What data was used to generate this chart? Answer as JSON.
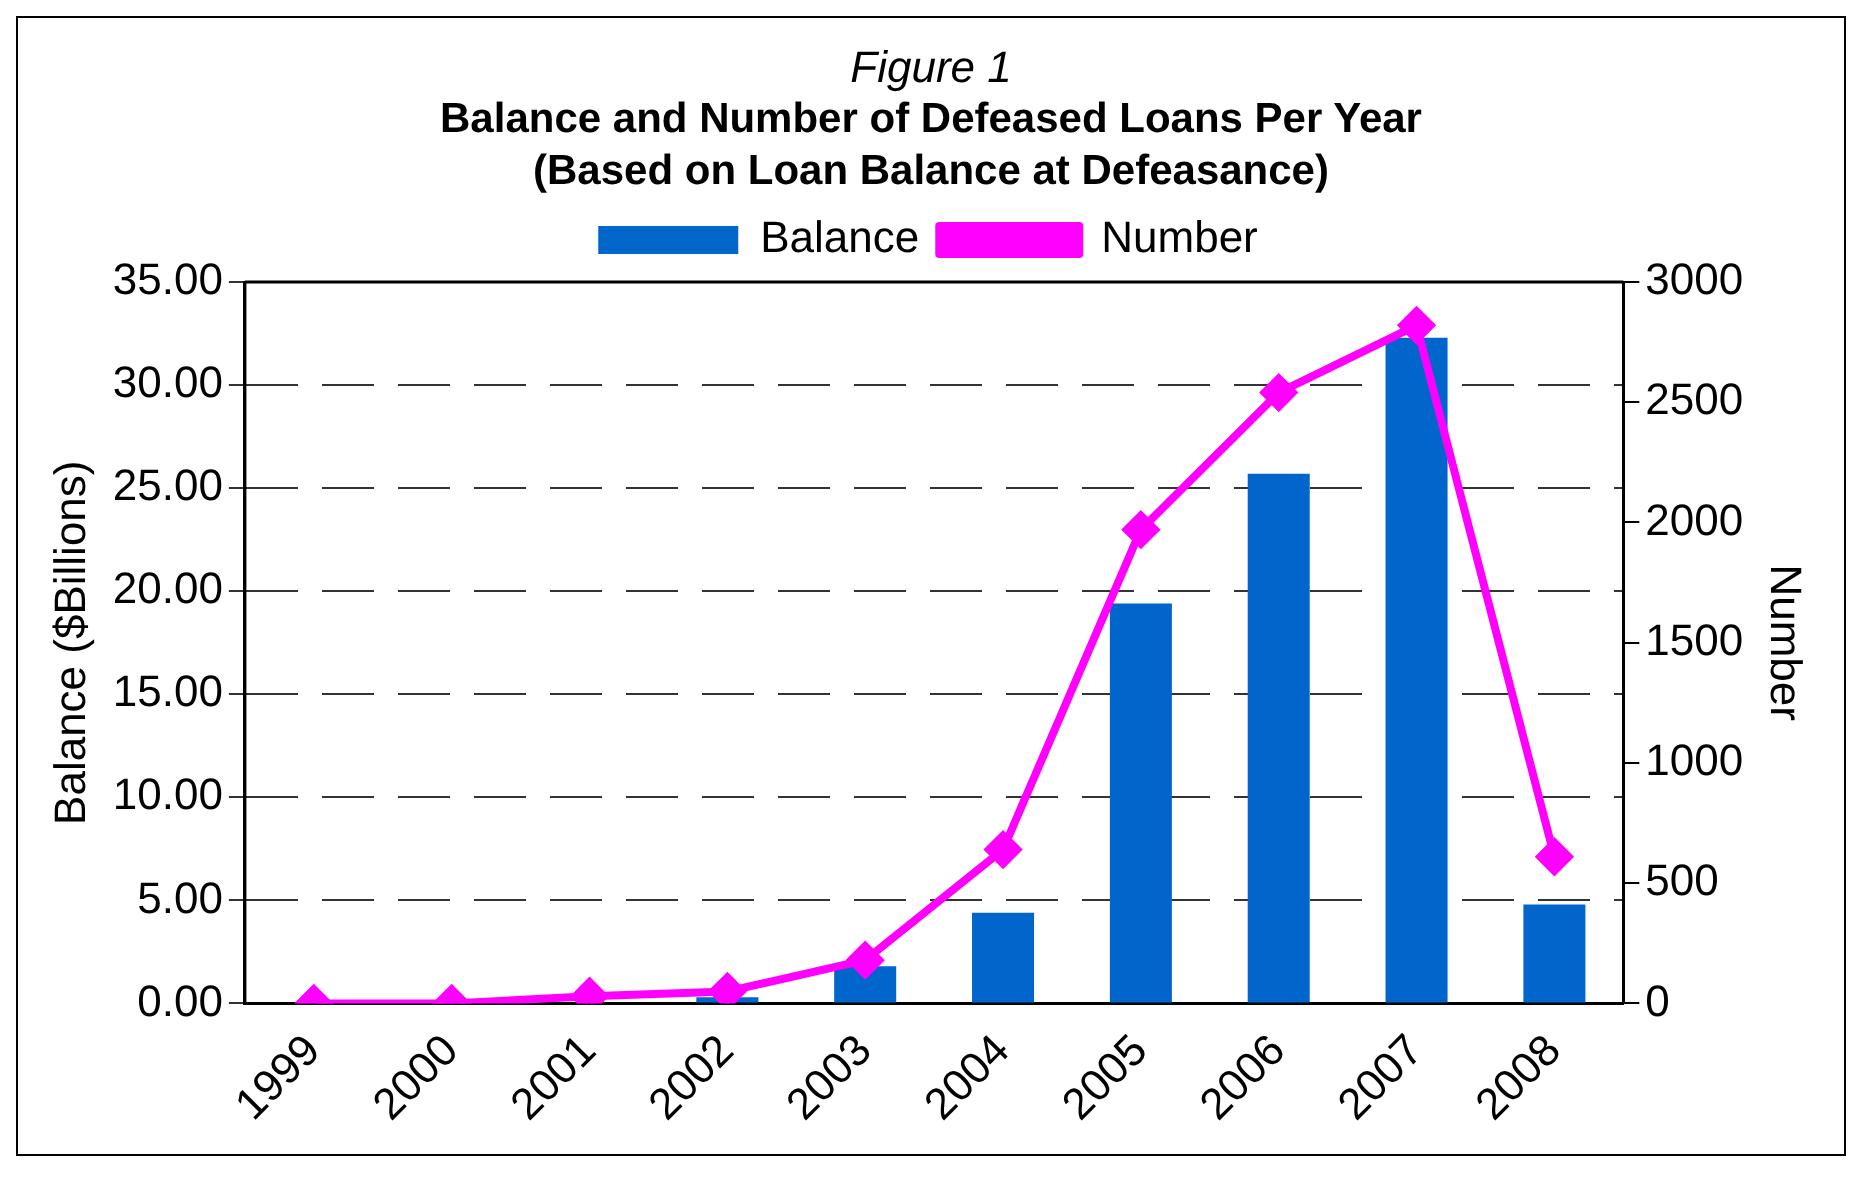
{
  "chart_data": {
    "type": "bar",
    "annotations": [
      "Figure 1"
    ],
    "title": "Balance and Number of Defeased Loans Per Year",
    "subtitle": "(Based on Loan Balance at Defeasance)",
    "categories": [
      "1999",
      "2000",
      "2001",
      "2002",
      "2003",
      "2004",
      "2005",
      "2006",
      "2007",
      "2008"
    ],
    "series": [
      {
        "name": "Balance",
        "color": "#0066cc",
        "values": [
          0,
          0,
          0,
          0.3,
          1.8,
          4.4,
          19.4,
          25.7,
          32.3,
          4.8
        ]
      },
      {
        "name": "Number",
        "type": "line",
        "axis": "y2",
        "color": "#ff00ff",
        "marker": "diamond",
        "values": [
          0,
          0,
          30,
          50,
          180,
          640,
          1970,
          2540,
          2820,
          610
        ]
      }
    ],
    "ylabel": "Balance ($Billions)",
    "y2label": "Number",
    "ylim": [
      0,
      35
    ],
    "yticks": [
      {
        "value": 0,
        "label": "0.00"
      },
      {
        "value": 5,
        "label": "5.00"
      },
      {
        "value": 10,
        "label": "10.00"
      },
      {
        "value": 15,
        "label": "15.00"
      },
      {
        "value": 20,
        "label": "20.00"
      },
      {
        "value": 25,
        "label": "25.00"
      },
      {
        "value": 30,
        "label": "30.00"
      },
      {
        "value": 35,
        "label": "35.00"
      }
    ],
    "y2lim": [
      0,
      3000
    ],
    "y2ticks": [
      0,
      500,
      1000,
      1500,
      2000,
      2500,
      3000
    ],
    "grid": "y",
    "legend": "top"
  }
}
